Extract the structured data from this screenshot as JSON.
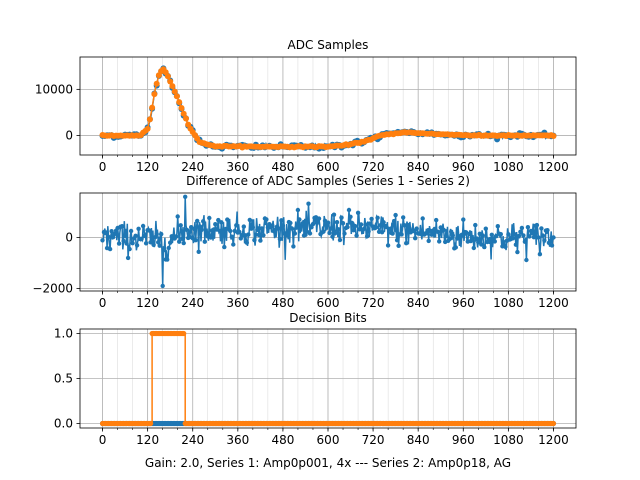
{
  "figure": {
    "footer": "Gain: 2.0, Series 1: Amp0p001, 4x --- Series 2: Amp0p18, AG"
  },
  "colors": {
    "series1": "#1f77b4",
    "series2": "#ff7f0e",
    "grid": "#b0b0b0",
    "axes": "#000000"
  },
  "chart_data": [
    {
      "type": "line",
      "title": "ADC Samples",
      "xlim": [
        -60,
        1260
      ],
      "ylim": [
        -4200,
        17000
      ],
      "grid": true,
      "x_ticks": [
        0,
        120,
        240,
        360,
        480,
        600,
        720,
        840,
        960,
        1080,
        1200
      ],
      "x_minor_step": 40,
      "y_ticks": [
        0,
        10000
      ],
      "y_tick_labels": [
        "0",
        "10000"
      ],
      "series": [
        {
          "color": "#1f77b4",
          "marker": "circle",
          "envelope": [
            [
              0,
              0
            ],
            [
              100,
              0
            ],
            [
              120,
              1500
            ],
            [
              130,
              5000
            ],
            [
              140,
              10000
            ],
            [
              150,
              13000
            ],
            [
              160,
              14500
            ],
            [
              170,
              13500
            ],
            [
              190,
              10000
            ],
            [
              210,
              6000
            ],
            [
              230,
              2000
            ],
            [
              260,
              -1500
            ],
            [
              300,
              -2300
            ],
            [
              400,
              -2400
            ],
            [
              600,
              -2400
            ],
            [
              650,
              -2000
            ],
            [
              700,
              -1200
            ],
            [
              740,
              0
            ],
            [
              800,
              700
            ],
            [
              900,
              300
            ],
            [
              1000,
              0
            ],
            [
              1100,
              0
            ],
            [
              1200,
              0
            ]
          ],
          "noise_amplitude": 400
        },
        {
          "color": "#ff7f0e",
          "marker": "circle",
          "envelope": [
            [
              0,
              0
            ],
            [
              100,
              0
            ],
            [
              120,
              1500
            ],
            [
              130,
              5000
            ],
            [
              140,
              10000
            ],
            [
              150,
              13000
            ],
            [
              160,
              14500
            ],
            [
              170,
              13500
            ],
            [
              190,
              10000
            ],
            [
              210,
              6000
            ],
            [
              230,
              2000
            ],
            [
              260,
              -1500
            ],
            [
              300,
              -2300
            ],
            [
              400,
              -2400
            ],
            [
              600,
              -2400
            ],
            [
              650,
              -2000
            ],
            [
              700,
              -1200
            ],
            [
              740,
              0
            ],
            [
              800,
              700
            ],
            [
              900,
              300
            ],
            [
              1000,
              0
            ],
            [
              1100,
              0
            ],
            [
              1200,
              0
            ]
          ],
          "noise_amplitude": 100
        }
      ]
    },
    {
      "type": "line",
      "title": "Difference of ADC Samples (Series 1 - Series 2)",
      "xlim": [
        -60,
        1260
      ],
      "ylim": [
        -2100,
        1750
      ],
      "grid": true,
      "x_ticks": [
        0,
        120,
        240,
        360,
        480,
        600,
        720,
        840,
        960,
        1080,
        1200
      ],
      "x_minor_step": 40,
      "y_ticks": [
        -2000,
        0
      ],
      "y_tick_labels": [
        "−2000",
        "0"
      ],
      "series": [
        {
          "color": "#1f77b4",
          "marker": "circle",
          "baseline": [
            [
              0,
              0
            ],
            [
              120,
              0
            ],
            [
              170,
              -200
            ],
            [
              220,
              300
            ],
            [
              400,
              300
            ],
            [
              600,
              400
            ],
            [
              800,
              300
            ],
            [
              1000,
              0
            ],
            [
              1200,
              0
            ]
          ],
          "noise_amplitude": 550,
          "min_point": [
            160,
            -1900
          ],
          "max_point": [
            220,
            1600
          ]
        }
      ]
    },
    {
      "type": "line",
      "title": "Decision Bits",
      "xlim": [
        -60,
        1260
      ],
      "ylim": [
        -0.05,
        1.05
      ],
      "grid": true,
      "x_ticks": [
        0,
        120,
        240,
        360,
        480,
        600,
        720,
        840,
        960,
        1080,
        1200
      ],
      "x_minor_step": 40,
      "y_ticks": [
        0.0,
        0.5,
        1.0
      ],
      "y_tick_labels": [
        "0.0",
        "0.5",
        "1.0"
      ],
      "xlabel": "Gain: 2.0, Series 1: Amp0p001, 4x --- Series 2: Amp0p18, AG",
      "series": [
        {
          "color": "#1f77b4",
          "marker": "circle",
          "steps": [
            [
              0,
              0
            ],
            [
              1200,
              0
            ]
          ]
        },
        {
          "color": "#ff7f0e",
          "marker": "circle",
          "steps": [
            [
              0,
              0
            ],
            [
              132,
              0
            ],
            [
              132,
              1
            ],
            [
              220,
              1
            ],
            [
              220,
              0
            ],
            [
              1200,
              0
            ]
          ]
        }
      ]
    }
  ]
}
